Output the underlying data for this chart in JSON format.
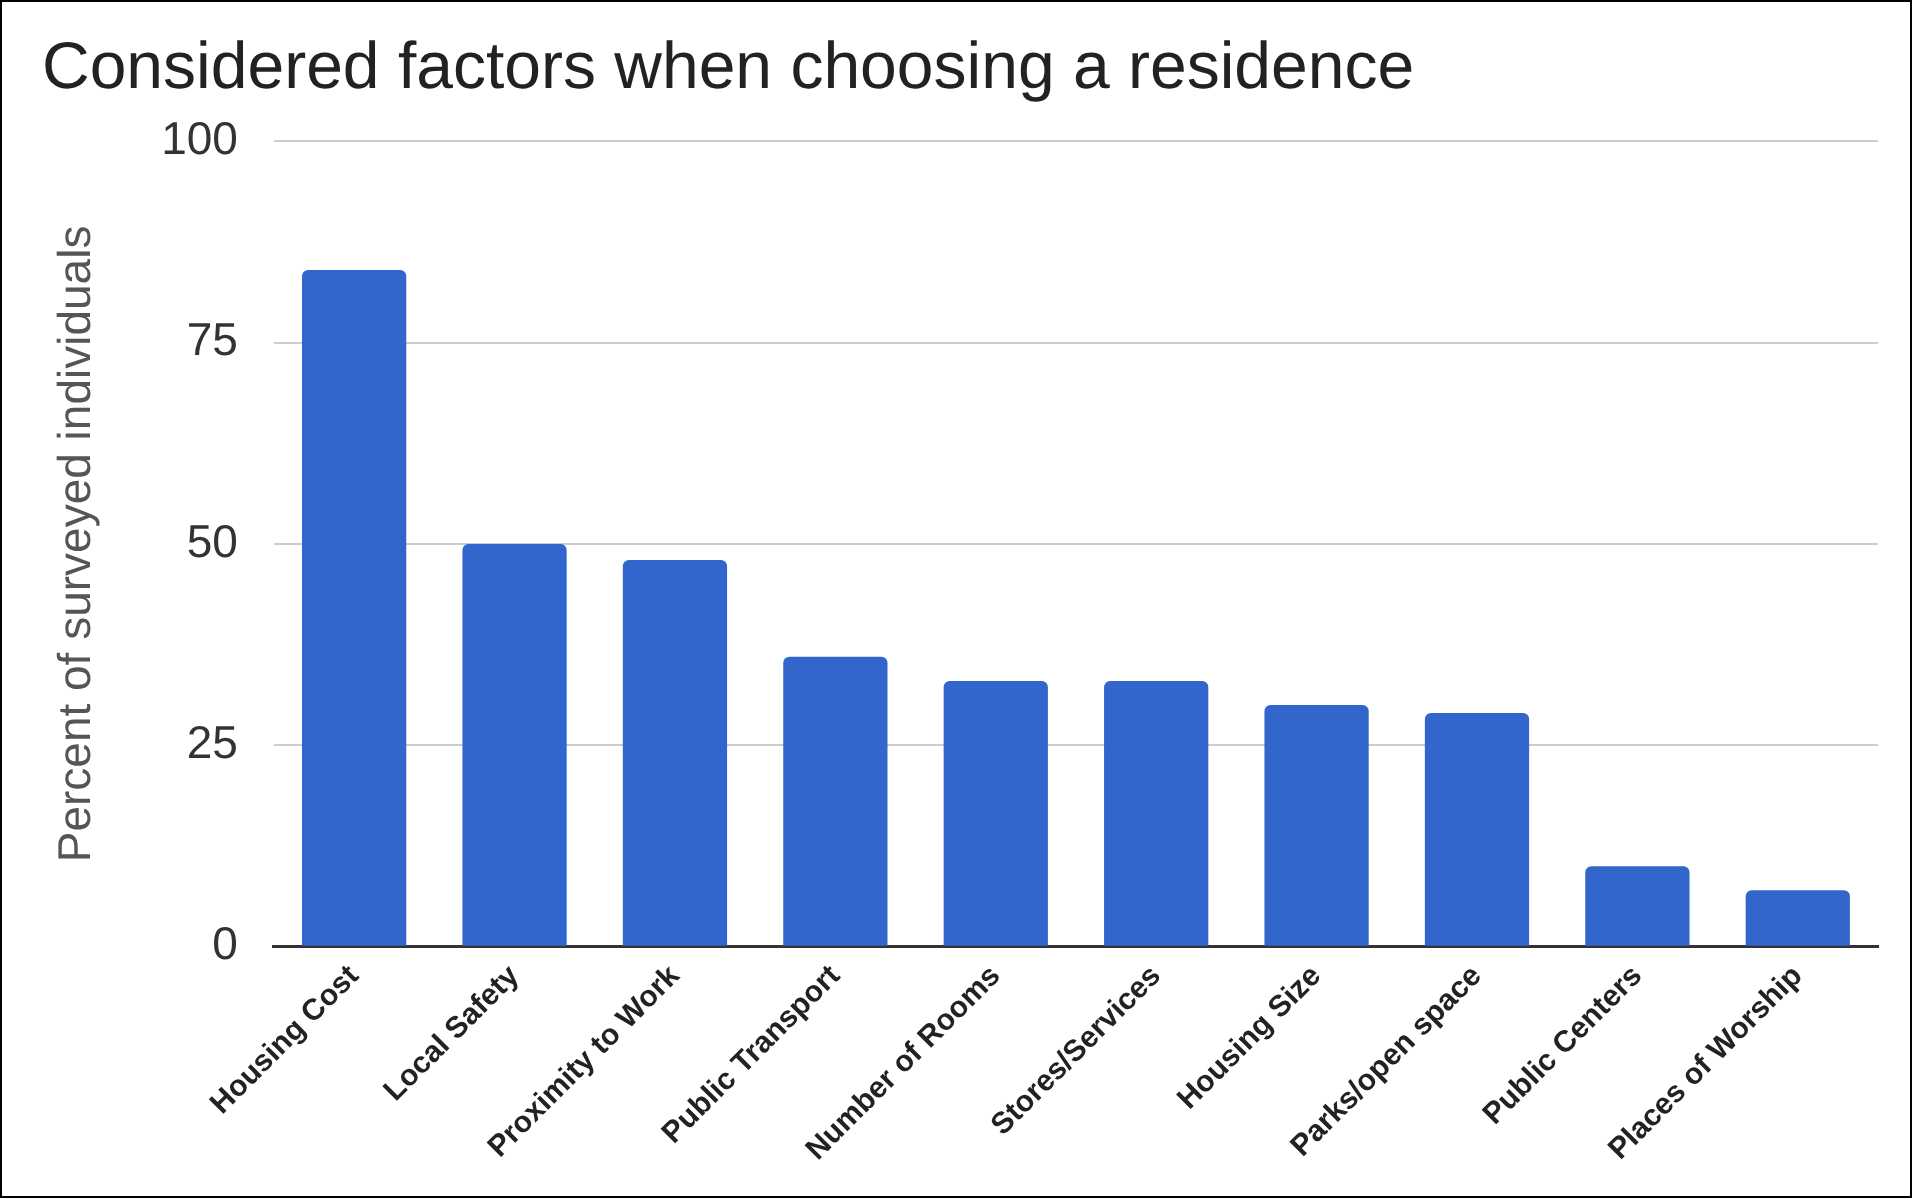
{
  "chart_data": {
    "type": "bar",
    "title": "Considered factors when choosing a residence",
    "ylabel": "Percent of surveyed individuals",
    "categories": [
      "Housing Cost",
      "Local Safety",
      "Proximity to Work",
      "Public Transport",
      "Number of Rooms",
      "Stores/Services",
      "Housing Size",
      "Parks/open space",
      "Public Centers",
      "Places of Worship"
    ],
    "values": [
      84,
      50,
      48,
      36,
      33,
      33,
      30,
      29,
      10,
      7
    ],
    "color": "#3366cc",
    "ylim": [
      0,
      100
    ],
    "yticks": [
      0,
      25,
      50,
      75,
      100
    ],
    "grid": "y"
  }
}
